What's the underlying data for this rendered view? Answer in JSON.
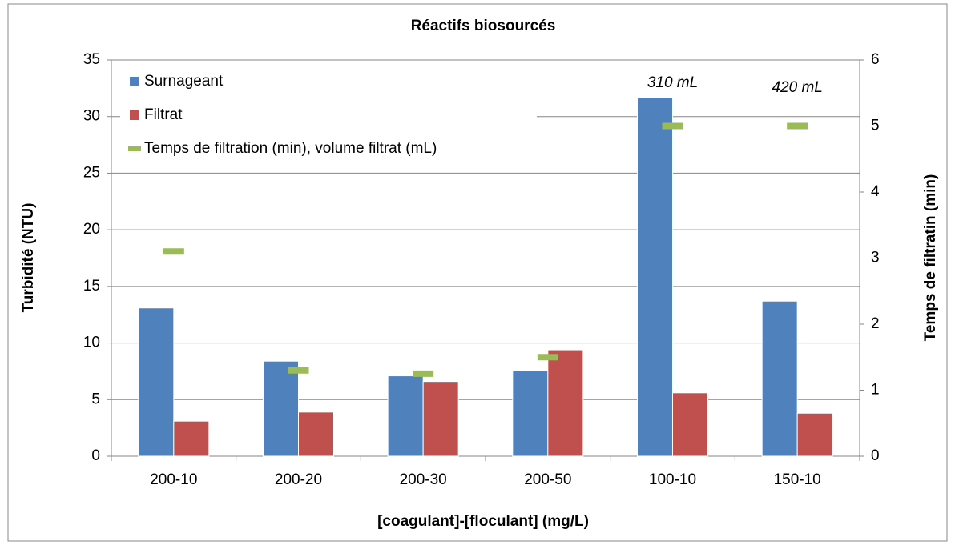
{
  "chart_data": {
    "type": "bar",
    "title": "Réactifs biosourcés",
    "x_label": "[coagulant]-[floculant] (mg/L)",
    "y_label": "Turbidité (NTU)",
    "y2_label": "Temps de filtratin (min)",
    "categories": [
      "200-10",
      "200-20",
      "200-30",
      "200-50",
      "100-10",
      "150-10"
    ],
    "series": [
      {
        "name": "Surnageant",
        "color": "#4f81bd",
        "values": [
          13.1,
          8.4,
          7.1,
          7.6,
          31.7,
          13.7
        ]
      },
      {
        "name": "Filtrat",
        "color": "#c0504d",
        "values": [
          3.1,
          3.9,
          6.6,
          9.4,
          5.6,
          3.8
        ]
      },
      {
        "name": "Temps de filtration (min), volume filtrat (mL)",
        "color": "#9bbb59",
        "axis": "y2",
        "marker": "dash",
        "values": [
          3.1,
          1.3,
          1.25,
          1.5,
          5.0,
          5.0
        ]
      }
    ],
    "annotations": [
      {
        "text": "310 mL",
        "category": 4
      },
      {
        "text": "420 mL",
        "category": 5
      }
    ],
    "ylim": [
      0,
      35
    ],
    "yticks": [
      0,
      5,
      10,
      15,
      20,
      25,
      30,
      35
    ],
    "y2lim": [
      0,
      6
    ],
    "y2ticks": [
      0,
      1,
      2,
      3,
      4,
      5,
      6
    ],
    "grid": true,
    "legend": "upper left"
  }
}
